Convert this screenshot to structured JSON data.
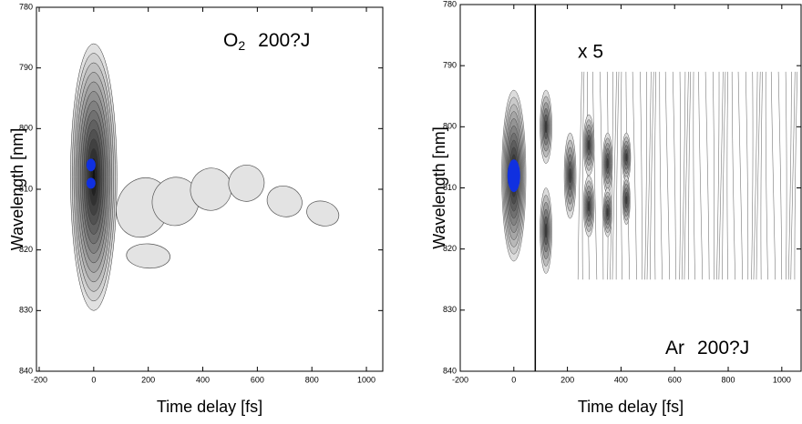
{
  "chart_data": [
    {
      "type": "contour",
      "xlabel": "Time delay [fs]",
      "ylabel": "Wavelength [nm]",
      "xlim": [
        -210,
        1060
      ],
      "xticks": [
        -200,
        0,
        200,
        400,
        600,
        800,
        1000
      ],
      "ylim": [
        840,
        780
      ],
      "yticks": [
        780,
        790,
        800,
        810,
        820,
        830,
        840
      ],
      "annotation": {
        "main": "O",
        "subscript": "2",
        "rest": "200?J"
      }
    },
    {
      "type": "contour",
      "xlabel": "Time delay [fs]",
      "ylabel": "Wavelength [nm]",
      "xlim": [
        -200,
        1072
      ],
      "xticks": [
        -200,
        0,
        200,
        400,
        600,
        800,
        1000
      ],
      "ylim": [
        840,
        780
      ],
      "yticks": [
        780,
        790,
        800,
        810,
        820,
        830,
        840
      ],
      "marker_x": 80,
      "annotation": {
        "scale": "x 5",
        "main": "Ar",
        "rest": "200?J"
      }
    }
  ]
}
